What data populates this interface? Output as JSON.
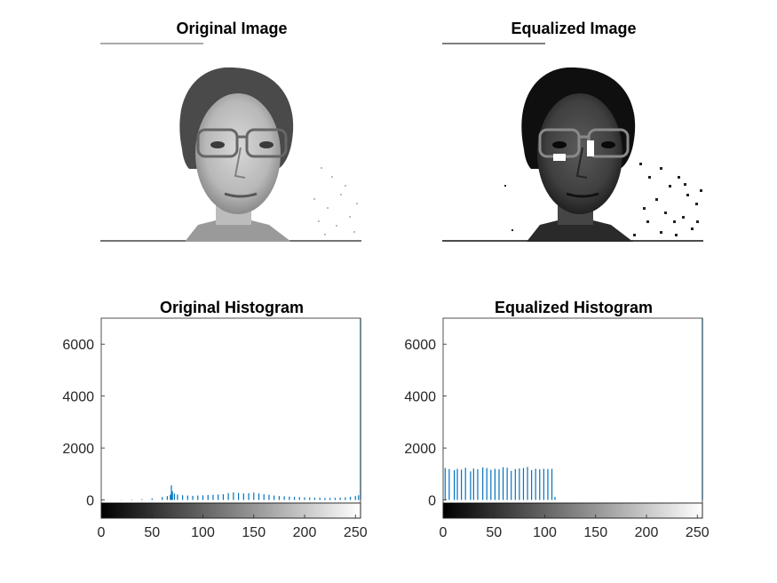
{
  "figure": {
    "titles": {
      "original_image": "Original Image",
      "equalized_image": "Equalized Image",
      "original_hist": "Original Histogram",
      "equalized_hist": "Equalized Histogram"
    },
    "colors": {
      "bar": "#0072BD",
      "axis": "#262626"
    }
  },
  "chart_data": [
    {
      "type": "bar",
      "title": "Original Histogram",
      "xlabel": "",
      "ylabel": "",
      "xlim": [
        0,
        255
      ],
      "ylim": [
        -700,
        7000
      ],
      "xticks": [
        0,
        50,
        100,
        150,
        200,
        250
      ],
      "yticks": [
        0,
        2000,
        4000,
        6000
      ],
      "colorbar": "grayscale 0-255",
      "bins": [
        {
          "x": 0,
          "y": 0
        },
        {
          "x": 10,
          "y": 5
        },
        {
          "x": 20,
          "y": 10
        },
        {
          "x": 30,
          "y": 15
        },
        {
          "x": 40,
          "y": 30
        },
        {
          "x": 50,
          "y": 60
        },
        {
          "x": 60,
          "y": 110
        },
        {
          "x": 65,
          "y": 150
        },
        {
          "x": 68,
          "y": 200
        },
        {
          "x": 69,
          "y": 560
        },
        {
          "x": 70,
          "y": 330
        },
        {
          "x": 72,
          "y": 250
        },
        {
          "x": 75,
          "y": 210
        },
        {
          "x": 80,
          "y": 180
        },
        {
          "x": 85,
          "y": 170
        },
        {
          "x": 90,
          "y": 160
        },
        {
          "x": 95,
          "y": 170
        },
        {
          "x": 100,
          "y": 180
        },
        {
          "x": 105,
          "y": 190
        },
        {
          "x": 110,
          "y": 200
        },
        {
          "x": 115,
          "y": 210
        },
        {
          "x": 120,
          "y": 220
        },
        {
          "x": 125,
          "y": 260
        },
        {
          "x": 130,
          "y": 290
        },
        {
          "x": 135,
          "y": 270
        },
        {
          "x": 140,
          "y": 250
        },
        {
          "x": 145,
          "y": 260
        },
        {
          "x": 150,
          "y": 280
        },
        {
          "x": 155,
          "y": 250
        },
        {
          "x": 160,
          "y": 220
        },
        {
          "x": 165,
          "y": 200
        },
        {
          "x": 170,
          "y": 170
        },
        {
          "x": 175,
          "y": 150
        },
        {
          "x": 180,
          "y": 140
        },
        {
          "x": 185,
          "y": 130
        },
        {
          "x": 190,
          "y": 120
        },
        {
          "x": 195,
          "y": 110
        },
        {
          "x": 200,
          "y": 100
        },
        {
          "x": 205,
          "y": 95
        },
        {
          "x": 210,
          "y": 90
        },
        {
          "x": 215,
          "y": 85
        },
        {
          "x": 220,
          "y": 80
        },
        {
          "x": 225,
          "y": 80
        },
        {
          "x": 230,
          "y": 85
        },
        {
          "x": 235,
          "y": 90
        },
        {
          "x": 240,
          "y": 100
        },
        {
          "x": 245,
          "y": 120
        },
        {
          "x": 250,
          "y": 150
        },
        {
          "x": 253,
          "y": 180
        },
        {
          "x": 255,
          "y": 7000
        }
      ]
    },
    {
      "type": "bar",
      "title": "Equalized Histogram",
      "xlabel": "",
      "ylabel": "",
      "xlim": [
        0,
        255
      ],
      "ylim": [
        -700,
        7000
      ],
      "xticks": [
        0,
        50,
        100,
        150,
        200,
        250
      ],
      "yticks": [
        0,
        2000,
        4000,
        6000
      ],
      "colorbar": "grayscale 0-255",
      "bins": [
        {
          "x": 2,
          "y": 1230
        },
        {
          "x": 6,
          "y": 1190
        },
        {
          "x": 11,
          "y": 1150
        },
        {
          "x": 14,
          "y": 1200
        },
        {
          "x": 18,
          "y": 1170
        },
        {
          "x": 22,
          "y": 1240
        },
        {
          "x": 27,
          "y": 1100
        },
        {
          "x": 30,
          "y": 1210
        },
        {
          "x": 34,
          "y": 1180
        },
        {
          "x": 39,
          "y": 1250
        },
        {
          "x": 43,
          "y": 1230
        },
        {
          "x": 47,
          "y": 1160
        },
        {
          "x": 51,
          "y": 1200
        },
        {
          "x": 55,
          "y": 1180
        },
        {
          "x": 59,
          "y": 1260
        },
        {
          "x": 63,
          "y": 1240
        },
        {
          "x": 67,
          "y": 1120
        },
        {
          "x": 71,
          "y": 1190
        },
        {
          "x": 75,
          "y": 1210
        },
        {
          "x": 79,
          "y": 1230
        },
        {
          "x": 83,
          "y": 1270
        },
        {
          "x": 87,
          "y": 1150
        },
        {
          "x": 91,
          "y": 1200
        },
        {
          "x": 95,
          "y": 1180
        },
        {
          "x": 99,
          "y": 1200
        },
        {
          "x": 103,
          "y": 1190
        },
        {
          "x": 107,
          "y": 1200
        },
        {
          "x": 110,
          "y": 120
        },
        {
          "x": 255,
          "y": 7000
        }
      ]
    }
  ]
}
